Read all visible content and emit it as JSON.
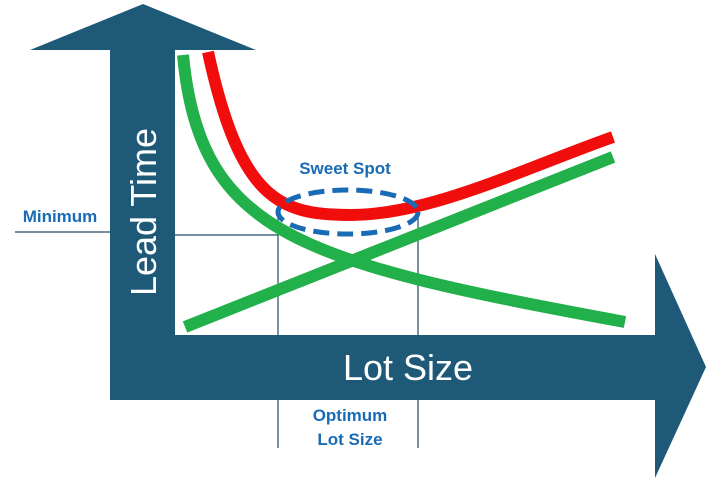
{
  "axes": {
    "y_label": "Lead Time",
    "x_label": "Lot Size"
  },
  "annotations": {
    "sweet_spot": "Sweet Spot",
    "minimum": "Minimum",
    "optimum": [
      "Optimum",
      "Lot Size"
    ]
  }
}
